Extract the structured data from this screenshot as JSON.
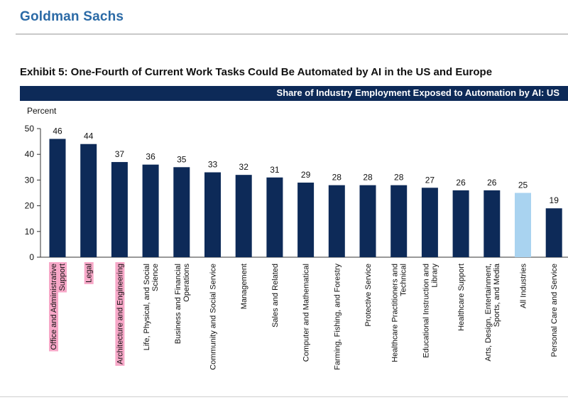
{
  "header": {
    "brand": "Goldman Sachs",
    "exhibit_title": "Exhibit 5: One-Fourth of Current Work Tasks Could Be Automated by AI in the US and Europe",
    "banner_label": "Share of Industry Employment Exposed to Automation by AI: US"
  },
  "colors": {
    "bar": "#0d2a58",
    "highlight_bar": "#a9d3f0",
    "label_highlight": "#f7a8c8",
    "banner": "#0d2a58",
    "brand": "#2b6aa6"
  },
  "chart_data": {
    "type": "bar",
    "title": "Share of Industry Employment Exposed to Automation by AI: US",
    "ylabel": "Percent",
    "xlabel": "",
    "ylim": [
      0,
      50
    ],
    "yticks": [
      0,
      10,
      20,
      30,
      40,
      50
    ],
    "grid": false,
    "categories": [
      [
        "Office and Administrative",
        "Support"
      ],
      [
        "Legal"
      ],
      [
        "Architecture and Engineering"
      ],
      [
        "Life, Physical, and Social",
        "Science"
      ],
      [
        "Business and Financial",
        "Operations"
      ],
      [
        "Community and Social Service"
      ],
      [
        "Management"
      ],
      [
        "Sales and Related"
      ],
      [
        "Computer and Mathematical"
      ],
      [
        "Farming, Fishing, and Forestry"
      ],
      [
        "Protective Service"
      ],
      [
        "Healthcare Practitioners and",
        "Technical"
      ],
      [
        "Educational Instruction and",
        "Library"
      ],
      [
        "Healthcare Support"
      ],
      [
        "Arts, Design, Entertainment,",
        "Sports, and Media"
      ],
      [
        "All Industries"
      ],
      [
        "Personal Care and Service"
      ]
    ],
    "values": [
      46,
      44,
      37,
      36,
      35,
      33,
      32,
      31,
      29,
      28,
      28,
      28,
      27,
      26,
      26,
      25,
      19
    ],
    "highlighted_bar": "All Industries",
    "highlighted_labels": [
      "Office and Administrative",
      "Legal",
      "Architecture and Engineering"
    ]
  }
}
